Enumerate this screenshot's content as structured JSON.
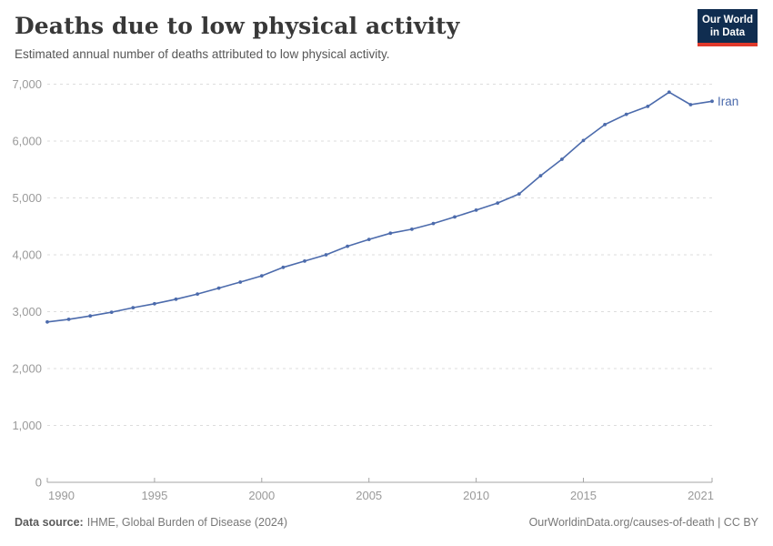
{
  "header": {
    "title": "Deaths due to low physical activity",
    "subtitle": "Estimated annual number of deaths attributed to low physical activity."
  },
  "logo": {
    "line1": "Our World",
    "line2": "in Data",
    "bg_color": "#102D50",
    "accent_color": "#E0392B",
    "text_color": "#FFFFFF"
  },
  "chart_data": {
    "type": "line",
    "title": "Deaths due to low physical activity",
    "subtitle": "Estimated annual number of deaths attributed to low physical activity.",
    "xlabel": "",
    "ylabel": "",
    "xlim": [
      1990,
      2021
    ],
    "ylim": [
      0,
      7000
    ],
    "x_ticks": [
      1990,
      1995,
      2000,
      2005,
      2010,
      2015,
      2021
    ],
    "y_ticks": [
      0,
      1000,
      2000,
      3000,
      4000,
      5000,
      6000,
      7000
    ],
    "grid": "horizontal-dashed",
    "legend": "line-end-label",
    "series": [
      {
        "name": "Iran",
        "color": "#4C6BAC",
        "x": [
          1990,
          1991,
          1992,
          1993,
          1994,
          1995,
          1996,
          1997,
          1998,
          1999,
          2000,
          2001,
          2002,
          2003,
          2004,
          2005,
          2006,
          2007,
          2008,
          2009,
          2010,
          2011,
          2012,
          2013,
          2014,
          2015,
          2016,
          2017,
          2018,
          2019,
          2020,
          2021
        ],
        "values": [
          2820,
          2865,
          2925,
          2990,
          3070,
          3140,
          3220,
          3310,
          3415,
          3520,
          3630,
          3780,
          3890,
          4000,
          4150,
          4270,
          4380,
          4450,
          4550,
          4665,
          4785,
          4910,
          5070,
          5390,
          5680,
          6010,
          6290,
          6470,
          6610,
          6860,
          6640,
          6700
        ]
      }
    ],
    "colors": {
      "grid": "#DDDDDD",
      "axis": "#A5A5A5",
      "tick_text": "#9A9A9A"
    }
  },
  "footer": {
    "source_label": "Data source:",
    "source_text": "IHME, Global Burden of Disease (2024)",
    "link_text": "OurWorldinData.org/causes-of-death | CC BY"
  }
}
